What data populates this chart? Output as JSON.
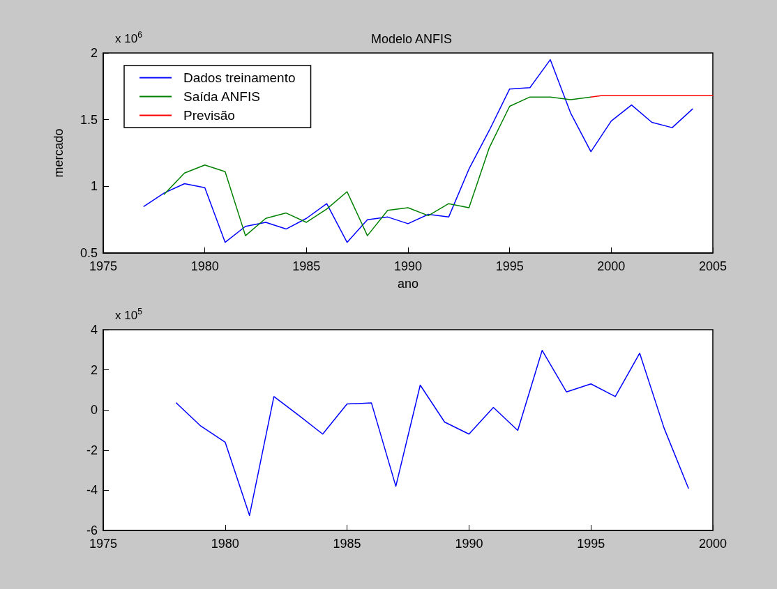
{
  "chart_data": [
    {
      "type": "line",
      "title": "Modelo ANFIS",
      "xlabel": "ano",
      "ylabel": "mercado",
      "annotations": [
        "x 10$^{6}$"
      ],
      "xlim": [
        1975,
        2005
      ],
      "xticks": [
        1975,
        1980,
        1985,
        1990,
        1995,
        2000,
        2005
      ],
      "ylim": [
        0.5,
        2
      ],
      "yticks": [
        0.5,
        1,
        1.5,
        2
      ],
      "grid": false,
      "legend": "top left",
      "marker": "none",
      "series": [
        {
          "name": "Dados treinamento",
          "color": "#0000ff",
          "x": [
            1977,
            1978,
            1979,
            1980,
            1981,
            1982,
            1983,
            1984,
            1985,
            1986,
            1987,
            1988,
            1989,
            1990,
            1991,
            1992,
            1993,
            1994,
            1995,
            1996,
            1997,
            1998,
            1999,
            2000,
            2001,
            2002,
            2003,
            2004
          ],
          "values": [
            0.85,
            0.95,
            1.02,
            0.99,
            0.58,
            0.7,
            0.73,
            0.68,
            0.76,
            0.87,
            0.58,
            0.75,
            0.77,
            0.72,
            0.79,
            0.77,
            1.13,
            1.42,
            1.73,
            1.74,
            1.95,
            1.55,
            1.26,
            1.49,
            1.61,
            1.48,
            1.44,
            1.58
          ]
        },
        {
          "name": "Saída ANFIS",
          "color": "#008000",
          "x": [
            1978,
            1979,
            1980,
            1981,
            1982,
            1983,
            1984,
            1985,
            1986,
            1987,
            1988,
            1989,
            1990,
            1991,
            1992,
            1993,
            1994,
            1995,
            1996,
            1997,
            1998,
            1999
          ],
          "values": [
            0.94,
            1.1,
            1.16,
            1.11,
            0.63,
            0.76,
            0.8,
            0.73,
            0.83,
            0.96,
            0.63,
            0.82,
            0.84,
            0.78,
            0.87,
            0.84,
            1.29,
            1.6,
            1.67,
            1.67,
            1.65,
            1.67
          ]
        },
        {
          "name": "Previsão",
          "color": "#ff0000",
          "x": [
            1999,
            1999.5,
            2005
          ],
          "values": [
            1.67,
            1.68,
            1.68
          ]
        }
      ]
    },
    {
      "type": "line",
      "annotations": [
        "x 10$^{5}$"
      ],
      "xlim": [
        1975,
        2000
      ],
      "xticks": [
        1975,
        1980,
        1985,
        1990,
        1995,
        2000
      ],
      "ylim": [
        -6,
        4
      ],
      "yticks": [
        -6,
        -4,
        -2,
        0,
        2,
        4
      ],
      "grid": false,
      "marker": "none",
      "series": [
        {
          "color": "#0000ff",
          "x": [
            1978,
            1979,
            1980,
            1981,
            1982,
            1983,
            1984,
            1985,
            1986,
            1987,
            1988,
            1989,
            1990,
            1991,
            1992,
            1993,
            1994,
            1995,
            1996,
            1997,
            1998,
            1999
          ],
          "values": [
            0.35,
            -0.8,
            -1.6,
            -5.25,
            0.67,
            -0.25,
            -1.2,
            0.3,
            0.35,
            -3.8,
            1.24,
            -0.6,
            -1.2,
            0.13,
            -1.02,
            2.97,
            0.9,
            1.3,
            0.67,
            2.83,
            -0.9,
            -3.9
          ]
        }
      ]
    }
  ]
}
